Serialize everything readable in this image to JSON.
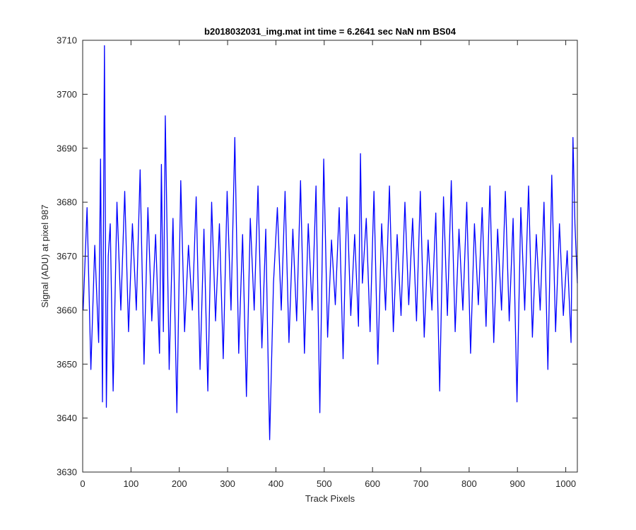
{
  "chart_data": {
    "type": "line",
    "title": "b2018032031_img.mat int time = 6.2641 sec  NaN nm BS04",
    "xlabel": "Track Pixels",
    "ylabel": "Signal (ADU) at pixel 987",
    "xlim": [
      0,
      1024
    ],
    "ylim": [
      3630,
      3710
    ],
    "xticks": [
      0,
      100,
      200,
      300,
      400,
      500,
      600,
      700,
      800,
      900,
      1000
    ],
    "yticks": [
      3630,
      3640,
      3650,
      3660,
      3670,
      3680,
      3690,
      3700,
      3710
    ],
    "grid": false,
    "legend": "none",
    "series": [
      {
        "color": "#0000ff",
        "x": [
          1,
          9,
          17,
          25,
          33,
          37,
          41,
          45,
          49,
          53,
          57,
          63,
          71,
          79,
          87,
          95,
          103,
          111,
          119,
          127,
          135,
          143,
          151,
          159,
          163,
          167,
          171,
          179,
          187,
          195,
          203,
          211,
          219,
          227,
          235,
          243,
          251,
          259,
          267,
          275,
          283,
          291,
          299,
          307,
          315,
          323,
          331,
          339,
          347,
          355,
          363,
          371,
          379,
          385,
          387,
          395,
          403,
          411,
          419,
          427,
          435,
          443,
          451,
          459,
          467,
          475,
          483,
          491,
          499,
          507,
          515,
          523,
          531,
          539,
          547,
          555,
          563,
          571,
          575,
          579,
          587,
          595,
          603,
          611,
          619,
          627,
          635,
          643,
          651,
          659,
          667,
          675,
          683,
          691,
          699,
          707,
          715,
          723,
          731,
          739,
          747,
          755,
          763,
          771,
          779,
          787,
          795,
          803,
          811,
          819,
          827,
          835,
          843,
          851,
          859,
          867,
          875,
          883,
          891,
          899,
          907,
          915,
          923,
          931,
          939,
          947,
          955,
          963,
          971,
          979,
          987,
          995,
          1003,
          1011,
          1015,
          1019,
          1024
        ],
        "y": [
          3660,
          3679,
          3649,
          3672,
          3654,
          3688,
          3643,
          3709,
          3642,
          3670,
          3676,
          3645,
          3680,
          3660,
          3682,
          3656,
          3676,
          3660,
          3686,
          3650,
          3679,
          3658,
          3674,
          3652,
          3687,
          3656,
          3696,
          3649,
          3677,
          3641,
          3684,
          3656,
          3672,
          3660,
          3681,
          3649,
          3675,
          3645,
          3680,
          3658,
          3676,
          3651,
          3682,
          3660,
          3692,
          3652,
          3674,
          3644,
          3677,
          3660,
          3683,
          3653,
          3675,
          3645,
          3636,
          3665,
          3679,
          3660,
          3682,
          3654,
          3675,
          3658,
          3684,
          3652,
          3676,
          3660,
          3683,
          3641,
          3688,
          3655,
          3673,
          3661,
          3679,
          3651,
          3681,
          3659,
          3674,
          3657,
          3689,
          3665,
          3677,
          3656,
          3682,
          3650,
          3676,
          3660,
          3683,
          3656,
          3674,
          3659,
          3680,
          3661,
          3677,
          3658,
          3682,
          3655,
          3673,
          3660,
          3678,
          3645,
          3681,
          3659,
          3684,
          3656,
          3675,
          3660,
          3680,
          3652,
          3676,
          3661,
          3679,
          3657,
          3683,
          3654,
          3675,
          3660,
          3682,
          3658,
          3677,
          3643,
          3679,
          3660,
          3683,
          3655,
          3674,
          3660,
          3680,
          3649,
          3685,
          3656,
          3676,
          3659,
          3671,
          3654,
          3692,
          3676,
          3665
        ]
      }
    ]
  }
}
